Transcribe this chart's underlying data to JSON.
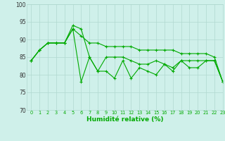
{
  "title": "",
  "xlabel": "Humidité relative (%)",
  "ylabel": "",
  "background_color": "#cff0ea",
  "grid_color": "#b0d8d0",
  "line_color": "#00aa00",
  "xlim": [
    -0.5,
    23
  ],
  "ylim": [
    70,
    100
  ],
  "yticks": [
    70,
    75,
    80,
    85,
    90,
    95,
    100
  ],
  "xticks": [
    0,
    1,
    2,
    3,
    4,
    5,
    6,
    7,
    8,
    9,
    10,
    11,
    12,
    13,
    14,
    15,
    16,
    17,
    18,
    19,
    20,
    21,
    22,
    23
  ],
  "series": [
    [
      84,
      87,
      89,
      89,
      89,
      93,
      91,
      89,
      89,
      88,
      88,
      88,
      88,
      87,
      87,
      87,
      87,
      87,
      86,
      86,
      86,
      86,
      85,
      78
    ],
    [
      84,
      87,
      89,
      89,
      89,
      94,
      93,
      85,
      81,
      85,
      85,
      85,
      84,
      83,
      83,
      84,
      83,
      82,
      84,
      84,
      84,
      84,
      84,
      78
    ],
    [
      84,
      87,
      89,
      89,
      89,
      93,
      78,
      85,
      81,
      81,
      79,
      84,
      79,
      82,
      81,
      80,
      83,
      81,
      84,
      82,
      82,
      84,
      84,
      78
    ]
  ],
  "marker": "+",
  "markersize": 3,
  "linewidth": 0.8,
  "xlabel_fontsize": 6.5,
  "xtick_fontsize": 4.8,
  "ytick_fontsize": 5.5
}
